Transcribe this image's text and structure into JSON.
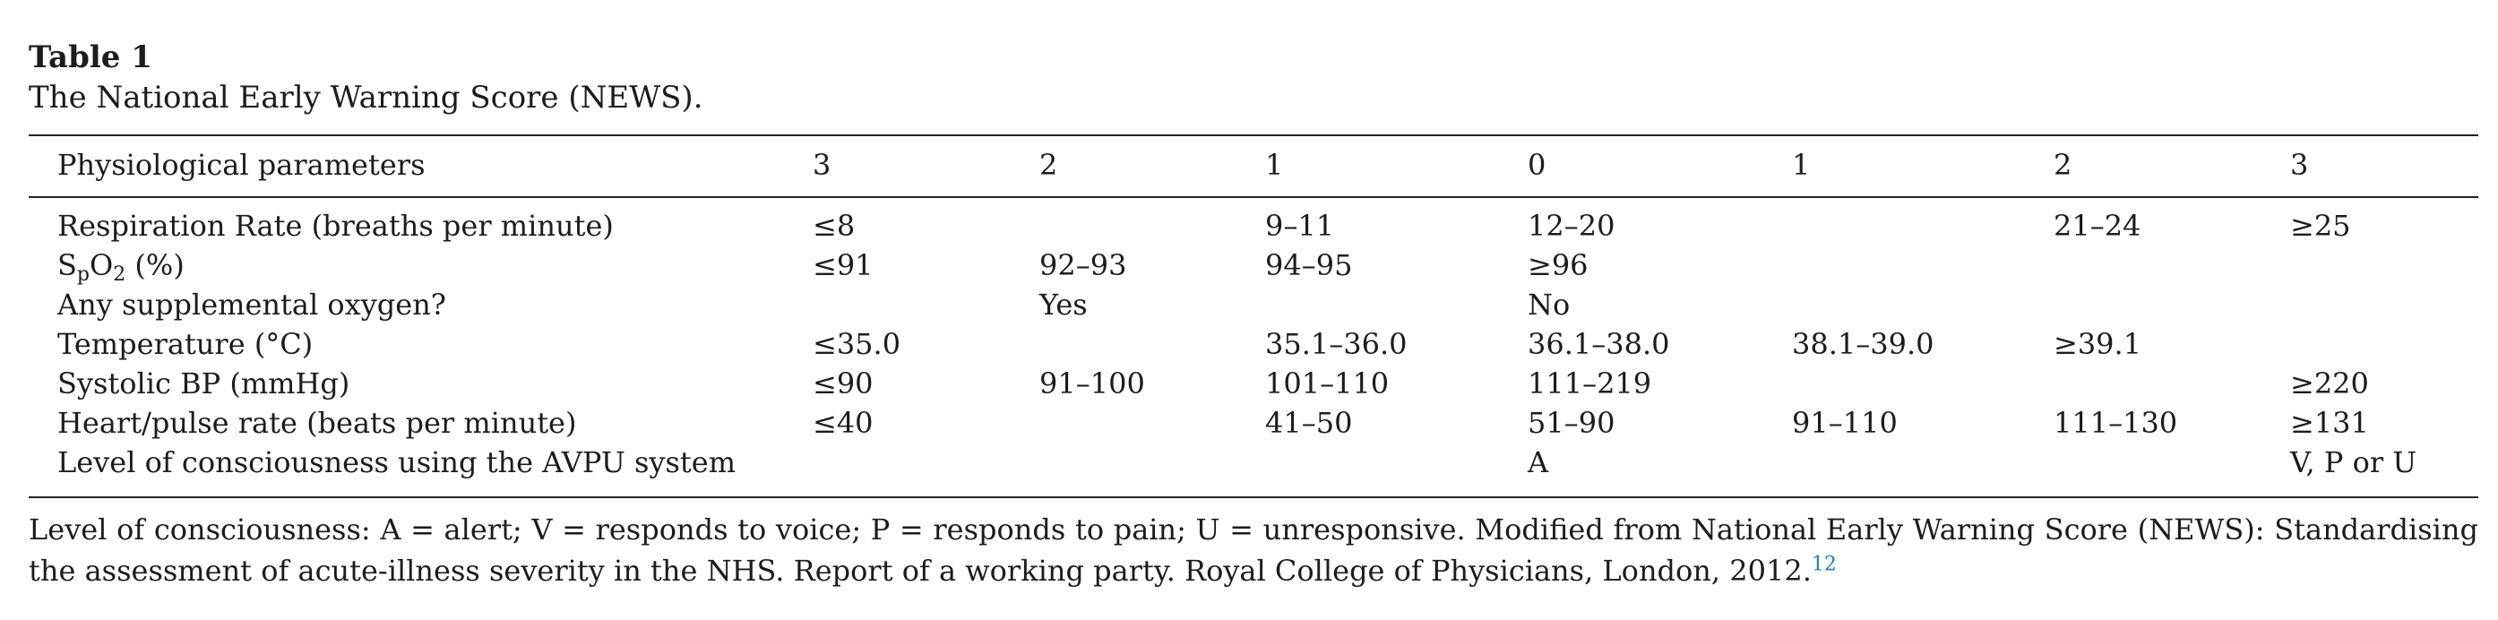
{
  "table": {
    "label": "Table 1",
    "caption": "The National Early Warning Score (NEWS).",
    "headers": [
      "Physiological parameters",
      "3",
      "2",
      "1",
      "0",
      "1",
      "2",
      "3"
    ],
    "spo2_label": {
      "main": "S",
      "sub_p": "p",
      "mid": "O",
      "sub_2": "2",
      "tail": " (%)"
    },
    "rows": [
      [
        "Respiration Rate (breaths per minute)",
        "≤8",
        "",
        "9–11",
        "12–20",
        "",
        "21–24",
        "≥25"
      ],
      [
        "SpO2 (%)",
        "≤91",
        "92–93",
        "94–95",
        "≥96",
        "",
        "",
        ""
      ],
      [
        "Any supplemental oxygen?",
        "",
        "Yes",
        "",
        "No",
        "",
        "",
        ""
      ],
      [
        "Temperature (°C)",
        "≤35.0",
        "",
        "35.1–36.0",
        "36.1–38.0",
        "38.1–39.0",
        "≥39.1",
        ""
      ],
      [
        "Systolic BP (mmHg)",
        "≤90",
        "91–100",
        "101–110",
        "111–219",
        "",
        "",
        "≥220"
      ],
      [
        "Heart/pulse rate (beats per minute)",
        "≤40",
        "",
        "41–50",
        "51–90",
        "91–110",
        "111–130",
        "≥131"
      ],
      [
        "Level of consciousness using the AVPU system",
        "",
        "",
        "",
        "A",
        "",
        "",
        "V, P or U"
      ]
    ]
  },
  "footnote": {
    "text": "Level of consciousness: A = alert; V = responds to voice; P = responds to pain; U = unresponsive. Modified from National Early Warning Score (NEWS): Standardising the assessment of acute-illness severity in the NHS. Report of a working party. Royal College of Physicians, London, 2012.",
    "ref": "12"
  }
}
